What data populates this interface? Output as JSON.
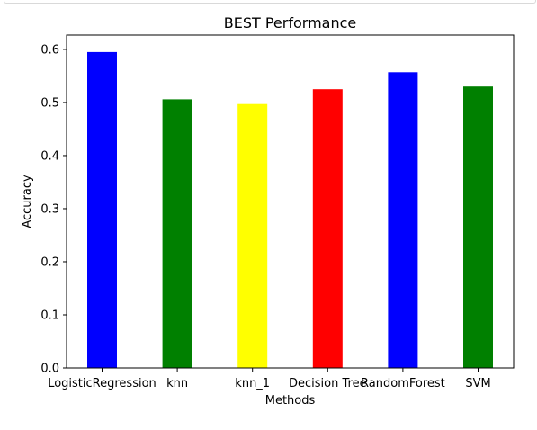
{
  "chart_data": {
    "type": "bar",
    "title": "BEST Performance",
    "xlabel": "Methods",
    "ylabel": "Accuracy",
    "categories": [
      "LogisticRegression",
      "knn",
      "knn_1",
      "Decision Tree",
      "RandomForest",
      "SVM"
    ],
    "values": [
      0.595,
      0.506,
      0.497,
      0.525,
      0.557,
      0.53
    ],
    "colors": [
      "#0000ff",
      "#008000",
      "#ffff00",
      "#ff0000",
      "#0000ff",
      "#008000"
    ],
    "ylim": [
      0,
      0.627
    ],
    "yticks": [
      "0.0",
      "0.1",
      "0.2",
      "0.3",
      "0.4",
      "0.5",
      "0.6"
    ],
    "grid": false
  }
}
